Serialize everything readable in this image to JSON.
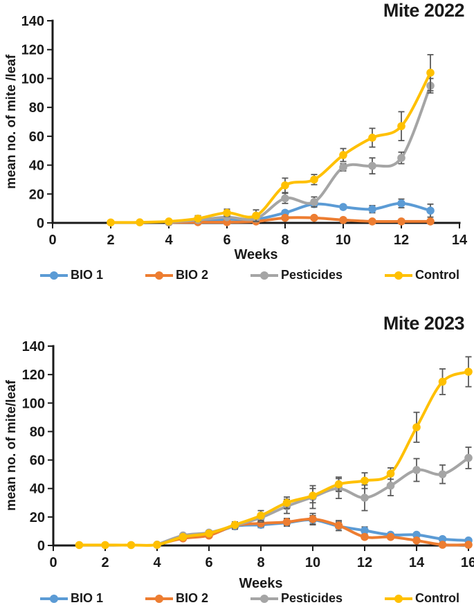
{
  "colors": {
    "background": "#ffffff",
    "axis": "#1a1a1a",
    "text": "#1a1a1a",
    "error_bar": "#595959"
  },
  "chart_data": [
    {
      "type": "line",
      "title": "Mite 2022",
      "xlabel": "Weeks",
      "ylabel": "mean no. of mite /leaf",
      "xlim": [
        0,
        14
      ],
      "ylim": [
        0,
        140
      ],
      "x_ticks": [
        0,
        2,
        4,
        6,
        8,
        10,
        12,
        14
      ],
      "y_ticks": [
        0,
        20,
        40,
        60,
        80,
        100,
        120,
        140
      ],
      "grid": false,
      "legend_position": "bottom",
      "marker": "circle",
      "error_bars": true,
      "series": [
        {
          "name": "BIO 1",
          "color": "#5B9BD5",
          "x": [
            4,
            5,
            6,
            7,
            8,
            9,
            10,
            11,
            12,
            13
          ],
          "y": [
            0.4,
            1.5,
            2.5,
            2.5,
            7,
            13,
            11,
            9.5,
            13.5,
            8.5
          ],
          "yerr": [
            0.5,
            0.5,
            1,
            1,
            1.5,
            2,
            1.5,
            2.5,
            3,
            4.5
          ]
        },
        {
          "name": "BIO 2",
          "color": "#ED7D31",
          "x": [
            4,
            5,
            6,
            7,
            8,
            9,
            10,
            11,
            12,
            13
          ],
          "y": [
            0.3,
            0.5,
            0.5,
            1,
            3.5,
            3.5,
            2,
            1,
            1,
            1
          ],
          "yerr": [
            0.3,
            0.5,
            0.5,
            0.5,
            1,
            0.5,
            1.5,
            1,
            1.5,
            1.5
          ]
        },
        {
          "name": "Pesticides",
          "color": "#A5A5A5",
          "x": [
            4,
            5,
            6,
            7,
            8,
            9,
            10,
            11,
            12,
            13
          ],
          "y": [
            0.4,
            2,
            4,
            3,
            17,
            14.5,
            38.5,
            39.5,
            45,
            95
          ],
          "yerr": [
            0.5,
            1,
            1.5,
            1,
            3.5,
            3.5,
            2.5,
            5.5,
            4,
            5
          ]
        },
        {
          "name": "Control",
          "color": "#FFC000",
          "x": [
            2,
            3,
            4,
            5,
            6,
            7,
            8,
            9,
            10,
            11,
            12,
            13
          ],
          "y": [
            0.3,
            0.4,
            1,
            3,
            7,
            5,
            26,
            30,
            47,
            59,
            67,
            104
          ],
          "yerr": [
            0,
            0,
            1,
            2,
            2.5,
            4,
            5,
            3.5,
            4.5,
            6.5,
            10,
            12.5
          ]
        }
      ]
    },
    {
      "type": "line",
      "title": "Mite 2023",
      "xlabel": "Weeks",
      "ylabel": "mean no. of mite/leaf",
      "xlim": [
        0,
        16
      ],
      "ylim": [
        0,
        140
      ],
      "x_ticks": [
        0,
        2,
        4,
        6,
        8,
        10,
        12,
        14,
        16
      ],
      "y_ticks": [
        0,
        20,
        40,
        60,
        80,
        100,
        120,
        140
      ],
      "grid": false,
      "legend_position": "bottom",
      "marker": "circle",
      "error_bars": true,
      "series": [
        {
          "name": "BIO 1",
          "color": "#5B9BD5",
          "x": [
            4,
            5,
            6,
            7,
            8,
            9,
            10,
            11,
            12,
            13,
            14,
            15,
            16
          ],
          "y": [
            0.5,
            6,
            7.5,
            13.5,
            14.5,
            16,
            18,
            13.5,
            10.5,
            7.5,
            7.5,
            4.5,
            3.5
          ],
          "yerr": [
            0,
            1,
            1,
            2,
            2,
            2.5,
            3,
            3,
            2.5,
            1.5,
            1.5,
            1,
            1
          ]
        },
        {
          "name": "BIO 2",
          "color": "#ED7D31",
          "x": [
            4,
            5,
            6,
            7,
            8,
            9,
            10,
            11,
            12,
            13,
            14,
            15,
            16
          ],
          "y": [
            0.5,
            5,
            7,
            14,
            15.5,
            16.5,
            18.5,
            14,
            6,
            6,
            3.5,
            0.5,
            0.5
          ],
          "yerr": [
            0,
            1,
            1,
            2.5,
            2,
            2.5,
            4,
            3.5,
            1.5,
            1.5,
            1.5,
            0.5,
            0.5
          ]
        },
        {
          "name": "Pesticides",
          "color": "#A5A5A5",
          "x": [
            4,
            5,
            6,
            7,
            8,
            9,
            10,
            11,
            12,
            13,
            14,
            15,
            16
          ],
          "y": [
            0.5,
            7,
            9,
            14,
            19.5,
            27.5,
            34,
            40,
            33.5,
            42,
            53,
            50,
            61.5
          ],
          "yerr": [
            0,
            1,
            1.5,
            2.5,
            3,
            5,
            8,
            7,
            9,
            7,
            8,
            6.5,
            7.5
          ]
        },
        {
          "name": "Control",
          "color": "#FFC000",
          "x": [
            1,
            2,
            3,
            4,
            5,
            6,
            7,
            8,
            9,
            10,
            11,
            12,
            13,
            14,
            15,
            16
          ],
          "y": [
            0.3,
            0.3,
            0.3,
            0.5,
            6,
            8.5,
            14.5,
            21,
            30,
            35,
            43,
            45.5,
            50.5,
            83,
            115,
            122
          ],
          "yerr": [
            0,
            0,
            0,
            0.3,
            1,
            1.5,
            2,
            3.5,
            4,
            5,
            5,
            5.5,
            4,
            10.5,
            9,
            10.5
          ]
        }
      ]
    }
  ]
}
